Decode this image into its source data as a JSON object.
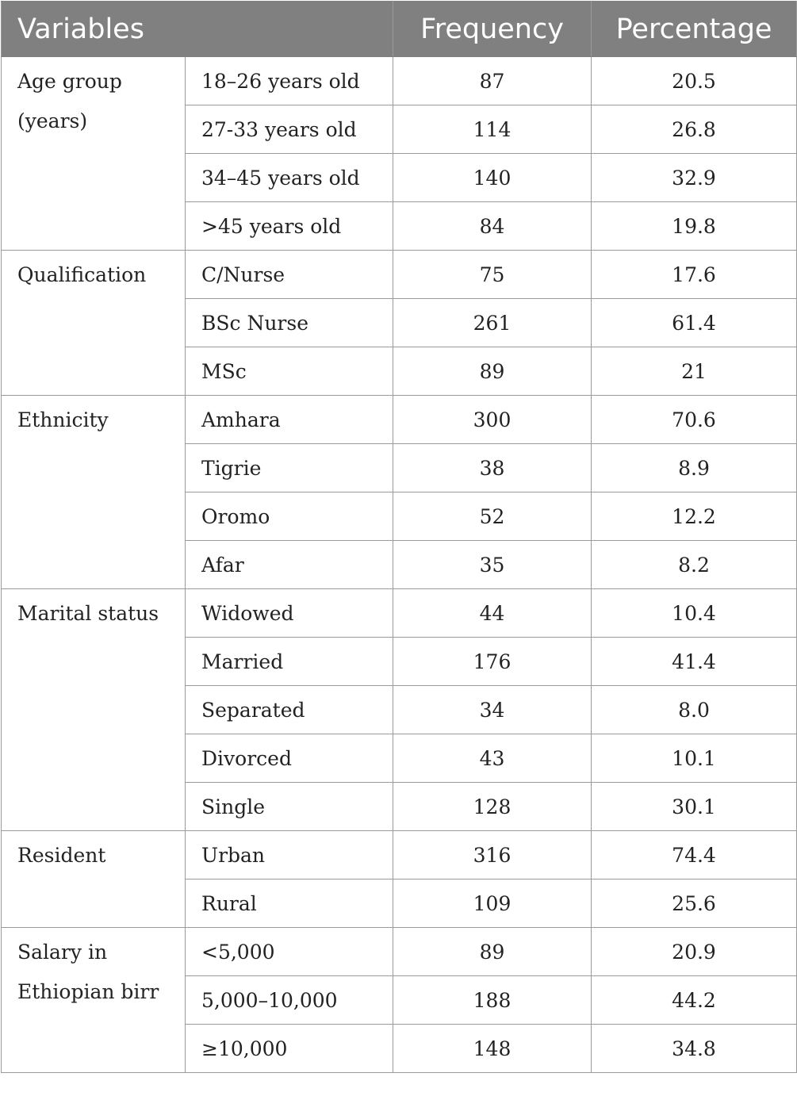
{
  "header": {
    "variables": "Variables",
    "frequency": "Frequency",
    "percentage": "Percentage"
  },
  "groups": [
    {
      "name": "Age group (years)",
      "rows": [
        {
          "category": "18–26 years old",
          "frequency": "87",
          "percentage": "20.5"
        },
        {
          "category": "27-33 years old",
          "frequency": "114",
          "percentage": "26.8"
        },
        {
          "category": "34–45 years old",
          "frequency": "140",
          "percentage": "32.9"
        },
        {
          "category": ">45 years old",
          "frequency": "84",
          "percentage": "19.8"
        }
      ]
    },
    {
      "name": "Qualification",
      "rows": [
        {
          "category": "C/Nurse",
          "frequency": "75",
          "percentage": "17.6"
        },
        {
          "category": "BSc Nurse",
          "frequency": "261",
          "percentage": "61.4"
        },
        {
          "category": "MSc",
          "frequency": "89",
          "percentage": "21"
        }
      ]
    },
    {
      "name": "Ethnicity",
      "rows": [
        {
          "category": "Amhara",
          "frequency": "300",
          "percentage": "70.6"
        },
        {
          "category": "Tigrie",
          "frequency": "38",
          "percentage": "8.9"
        },
        {
          "category": "Oromo",
          "frequency": "52",
          "percentage": "12.2"
        },
        {
          "category": "Afar",
          "frequency": "35",
          "percentage": "8.2"
        }
      ]
    },
    {
      "name": "Marital status",
      "rows": [
        {
          "category": "Widowed",
          "frequency": "44",
          "percentage": "10.4"
        },
        {
          "category": "Married",
          "frequency": "176",
          "percentage": "41.4"
        },
        {
          "category": "Separated",
          "frequency": "34",
          "percentage": "8.0"
        },
        {
          "category": "Divorced",
          "frequency": "43",
          "percentage": "10.1"
        },
        {
          "category": "Single",
          "frequency": "128",
          "percentage": "30.1"
        }
      ]
    },
    {
      "name": "Resident",
      "rows": [
        {
          "category": "Urban",
          "frequency": "316",
          "percentage": "74.4"
        },
        {
          "category": "Rural",
          "frequency": "109",
          "percentage": "25.6"
        }
      ]
    },
    {
      "name": "Salary in Ethiopian birr",
      "rows": [
        {
          "category": "<5,000",
          "frequency": "89",
          "percentage": "20.9"
        },
        {
          "category": "5,000–10,000",
          "frequency": "188",
          "percentage": "44.2"
        },
        {
          "category": "≥10,000",
          "frequency": "148",
          "percentage": "34.8"
        }
      ]
    }
  ]
}
